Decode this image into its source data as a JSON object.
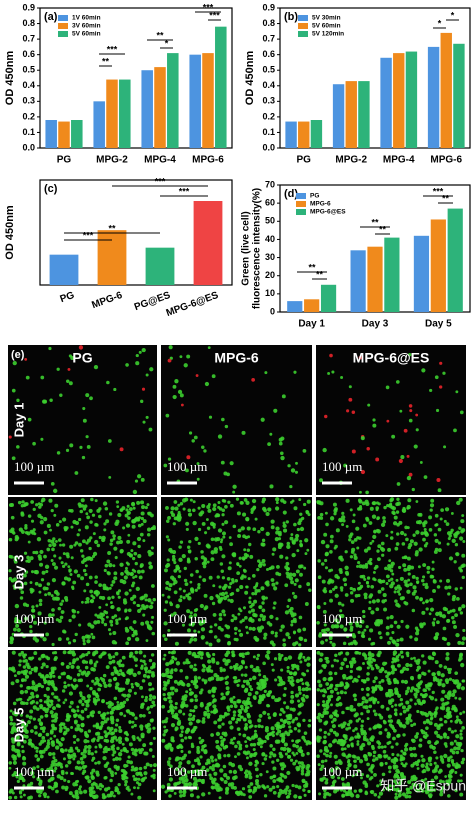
{
  "chart_data": [
    {
      "type": "bar",
      "panel_label": "(a)",
      "y_label": "OD 450nm",
      "categories": [
        "PG",
        "MPG-2",
        "MPG-4",
        "MPG-6"
      ],
      "series": [
        {
          "name": "1V 60min",
          "color": "#4d94e0",
          "values": [
            0.18,
            0.3,
            0.5,
            0.6
          ]
        },
        {
          "name": "3V 60min",
          "color": "#f08a1c",
          "values": [
            0.17,
            0.44,
            0.52,
            0.61
          ]
        },
        {
          "name": "5V 60min",
          "color": "#2db37a",
          "values": [
            0.18,
            0.44,
            0.61,
            0.78
          ]
        }
      ],
      "ylim": [
        0,
        0.9
      ],
      "yticks": [
        {
          "value": 0,
          "label": "0.0"
        },
        {
          "value": 0.1,
          "label": "0.1"
        },
        {
          "value": 0.2,
          "label": "0.2"
        },
        {
          "value": 0.3,
          "label": "0.3"
        },
        {
          "value": 0.4,
          "label": "0.4"
        },
        {
          "value": 0.5,
          "label": "0.5"
        },
        {
          "value": 0.6,
          "label": "0.6"
        },
        {
          "value": 0.7,
          "label": "0.7"
        },
        {
          "value": 0.8,
          "label": "0.8"
        },
        {
          "value": 0.9,
          "label": "0.9"
        }
      ],
      "annotations": [
        "***",
        "**",
        "**",
        "*",
        "***",
        "***"
      ]
    },
    {
      "type": "bar",
      "panel_label": "(b)",
      "y_label": "OD 450nm",
      "categories": [
        "PG",
        "MPG-2",
        "MPG-4",
        "MPG-6"
      ],
      "series": [
        {
          "name": "5V 30min",
          "color": "#4d94e0",
          "values": [
            0.17,
            0.41,
            0.58,
            0.65
          ]
        },
        {
          "name": "5V 60min",
          "color": "#f08a1c",
          "values": [
            0.17,
            0.43,
            0.61,
            0.74
          ]
        },
        {
          "name": "5V 120min",
          "color": "#2db37a",
          "values": [
            0.18,
            0.43,
            0.62,
            0.67
          ]
        }
      ],
      "ylim": [
        0,
        0.9
      ],
      "yticks": [
        {
          "value": 0,
          "label": "0.0"
        },
        {
          "value": 0.1,
          "label": "0.1"
        },
        {
          "value": 0.2,
          "label": "0.2"
        },
        {
          "value": 0.3,
          "label": "0.3"
        },
        {
          "value": 0.4,
          "label": "0.4"
        },
        {
          "value": 0.5,
          "label": "0.5"
        },
        {
          "value": 0.6,
          "label": "0.6"
        },
        {
          "value": 0.7,
          "label": "0.7"
        },
        {
          "value": 0.8,
          "label": "0.8"
        },
        {
          "value": 0.9,
          "label": "0.9"
        }
      ],
      "annotations": [
        "*",
        "*"
      ]
    },
    {
      "type": "bar",
      "panel_label": "(c)",
      "y_label": "OD 450nm",
      "categories": [
        "PG",
        "MPG-6",
        "PG@ES",
        "MPG-6@ES"
      ],
      "values": [
        0.26,
        0.47,
        0.32,
        0.72
      ],
      "colors": [
        "#4d94e0",
        "#f08a1c",
        "#2db37a",
        "#ef4444"
      ],
      "ylim": [
        0,
        0.9
      ],
      "annotations": [
        "***",
        "**",
        "***",
        "***"
      ]
    },
    {
      "type": "bar",
      "panel_label": "(d)",
      "y_label": [
        "Green (live cell)",
        "fluorescence intensity(%)"
      ],
      "categories": [
        "Day 1",
        "Day 3",
        "Day 5"
      ],
      "series": [
        {
          "name": "PG",
          "color": "#4d94e0",
          "values": [
            6,
            34,
            42
          ]
        },
        {
          "name": "MPG-6",
          "color": "#f08a1c",
          "values": [
            7,
            36,
            51
          ]
        },
        {
          "name": "MPG-6@ES",
          "color": "#2db37a",
          "values": [
            15,
            41,
            57
          ]
        }
      ],
      "ylim": [
        0,
        70
      ],
      "yticks": [
        0,
        10,
        20,
        30,
        40,
        50,
        60,
        70
      ],
      "annotations": [
        "**",
        "**",
        "**",
        "**",
        "***",
        "**"
      ]
    }
  ],
  "images": {
    "panel_label": "(e)",
    "columns": [
      "PG",
      "MPG-6",
      "MPG-6@ES"
    ],
    "rows": [
      "Day 1",
      "Day 3",
      "Day 5"
    ],
    "scale_bar": "100 µm",
    "watermark": "知乎 @Espun"
  }
}
